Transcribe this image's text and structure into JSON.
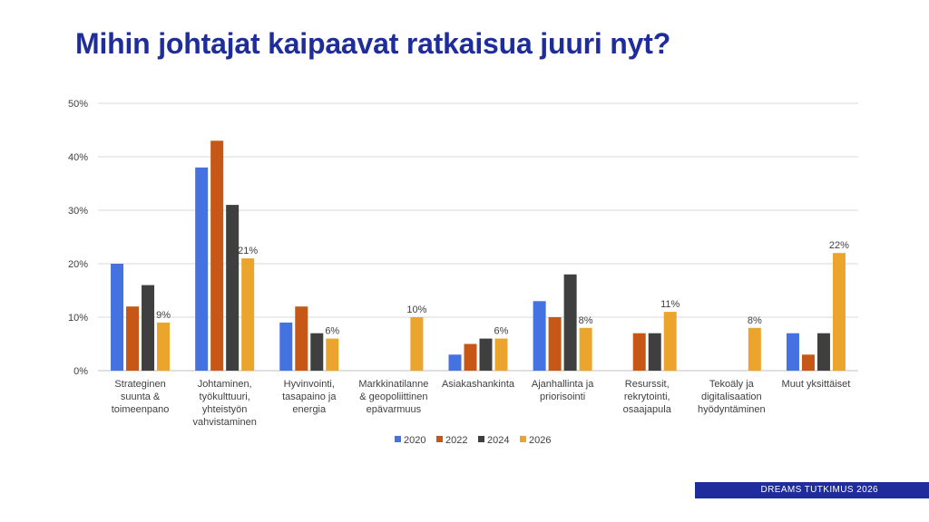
{
  "title": "Mihin johtajat kaipaavat ratkaisua juuri nyt?",
  "footer": "DREAMS TUTKIMUS 2026",
  "colors": {
    "title": "#1f2d9c",
    "series": [
      "#4472e0",
      "#c65716",
      "#3f3f3f",
      "#eba52d"
    ],
    "grid": "#d9d9d9",
    "text": "#404040"
  },
  "chart_data": {
    "type": "bar",
    "ylim": [
      0,
      50
    ],
    "yticks": [
      "0%",
      "10%",
      "20%",
      "30%",
      "40%",
      "50%"
    ],
    "grid": true,
    "legend_position": "bottom",
    "categories": [
      [
        "Strateginen",
        "suunta &",
        "toimeenpano"
      ],
      [
        "Johtaminen,",
        "työkulttuuri,",
        "yhteistyön",
        "vahvistaminen"
      ],
      [
        "Hyvinvointi,",
        "tasapaino ja",
        "energia"
      ],
      [
        "Markkinatilanne",
        "& geopoliittinen",
        "epävarmuus"
      ],
      [
        "Asiakashankinta"
      ],
      [
        "Ajanhallinta ja",
        "priorisointi"
      ],
      [
        "Resurssit,",
        "rekrytointi,",
        "osaajapula"
      ],
      [
        "Tekoäly ja",
        "digitalisaation",
        "hyödyntäminen"
      ],
      [
        "Muut yksittäiset"
      ]
    ],
    "series": [
      {
        "name": "2020",
        "values": [
          20,
          38,
          9,
          0,
          3,
          13,
          0,
          0,
          7
        ]
      },
      {
        "name": "2022",
        "values": [
          12,
          43,
          12,
          0,
          5,
          10,
          7,
          0,
          3
        ]
      },
      {
        "name": "2024",
        "values": [
          16,
          31,
          7,
          0,
          6,
          18,
          7,
          0,
          7
        ]
      },
      {
        "name": "2026",
        "values": [
          9,
          21,
          6,
          10,
          6,
          8,
          11,
          8,
          22
        ],
        "data_labels": [
          "9%",
          "21%",
          "6%",
          "10%",
          "6%",
          "8%",
          "11%",
          "8%",
          "22%"
        ]
      }
    ]
  }
}
